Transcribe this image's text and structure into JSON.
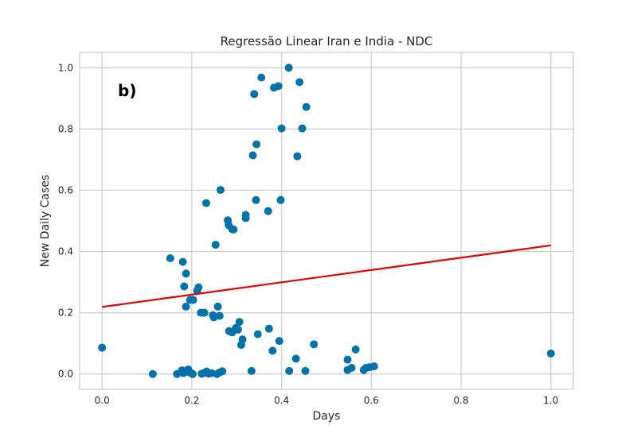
{
  "chart_data": {
    "type": "scatter",
    "title": "Regressão Linear Iran e India - NDC",
    "xlabel": "Days",
    "ylabel": "New Daily Cases",
    "panel_label": "b)",
    "xlim": [
      -0.05,
      1.05
    ],
    "ylim": [
      -0.05,
      1.05
    ],
    "xticks": [
      0.0,
      0.2,
      0.4,
      0.6,
      0.8,
      1.0
    ],
    "yticks": [
      0.0,
      0.2,
      0.4,
      0.6,
      0.8,
      1.0
    ],
    "xtick_labels": [
      "0.0",
      "0.2",
      "0.4",
      "0.6",
      "0.8",
      "1.0"
    ],
    "ytick_labels": [
      "0.0",
      "0.2",
      "0.4",
      "0.6",
      "0.8",
      "1.0"
    ],
    "grid": true,
    "point_color": "#0072A8",
    "line_color": "#E00000",
    "grid_color": "#CCCCCC",
    "series": [
      {
        "kind": "scatter",
        "points": [
          [
            0.0,
            0.086
          ],
          [
            0.113,
            0.0
          ],
          [
            0.167,
            0.0
          ],
          [
            0.178,
            0.012
          ],
          [
            0.181,
            0.003
          ],
          [
            0.187,
            0.007
          ],
          [
            0.192,
            0.015
          ],
          [
            0.197,
            0.004
          ],
          [
            0.202,
            0.0
          ],
          [
            0.222,
            0.001
          ],
          [
            0.228,
            0.004
          ],
          [
            0.233,
            0.008
          ],
          [
            0.238,
            0.001
          ],
          [
            0.244,
            0.003
          ],
          [
            0.256,
            0.0
          ],
          [
            0.262,
            0.005
          ],
          [
            0.268,
            0.009
          ],
          [
            0.333,
            0.01
          ],
          [
            0.417,
            0.01
          ],
          [
            0.453,
            0.01
          ],
          [
            0.547,
            0.013
          ],
          [
            0.556,
            0.02
          ],
          [
            0.583,
            0.013
          ],
          [
            0.588,
            0.02
          ],
          [
            0.596,
            0.022
          ],
          [
            0.606,
            0.025
          ],
          [
            1.0,
            0.067
          ],
          [
            0.152,
            0.378
          ],
          [
            0.18,
            0.366
          ],
          [
            0.187,
            0.328
          ],
          [
            0.183,
            0.286
          ],
          [
            0.215,
            0.283
          ],
          [
            0.212,
            0.272
          ],
          [
            0.203,
            0.242
          ],
          [
            0.196,
            0.242
          ],
          [
            0.187,
            0.22
          ],
          [
            0.258,
            0.22
          ],
          [
            0.22,
            0.2
          ],
          [
            0.228,
            0.2
          ],
          [
            0.247,
            0.192
          ],
          [
            0.262,
            0.19
          ],
          [
            0.249,
            0.185
          ],
          [
            0.283,
            0.14
          ],
          [
            0.29,
            0.136
          ],
          [
            0.298,
            0.15
          ],
          [
            0.306,
            0.17
          ],
          [
            0.303,
            0.145
          ],
          [
            0.313,
            0.113
          ],
          [
            0.31,
            0.095
          ],
          [
            0.347,
            0.13
          ],
          [
            0.372,
            0.148
          ],
          [
            0.38,
            0.076
          ],
          [
            0.395,
            0.108
          ],
          [
            0.432,
            0.05
          ],
          [
            0.547,
            0.047
          ],
          [
            0.565,
            0.08
          ],
          [
            0.472,
            0.097
          ],
          [
            0.232,
            0.558
          ],
          [
            0.253,
            0.422
          ],
          [
            0.264,
            0.601
          ],
          [
            0.28,
            0.502
          ],
          [
            0.282,
            0.486
          ],
          [
            0.29,
            0.473
          ],
          [
            0.293,
            0.472
          ],
          [
            0.32,
            0.509
          ],
          [
            0.32,
            0.519
          ],
          [
            0.343,
            0.568
          ],
          [
            0.37,
            0.532
          ],
          [
            0.398,
            0.568
          ],
          [
            0.336,
            0.714
          ],
          [
            0.344,
            0.75
          ],
          [
            0.4,
            0.802
          ],
          [
            0.446,
            0.802
          ],
          [
            0.435,
            0.711
          ],
          [
            0.455,
            0.872
          ],
          [
            0.339,
            0.914
          ],
          [
            0.383,
            0.935
          ],
          [
            0.393,
            0.94
          ],
          [
            0.355,
            0.968
          ],
          [
            0.416,
            1.0
          ],
          [
            0.44,
            0.953
          ]
        ]
      },
      {
        "kind": "line",
        "points": [
          [
            0.0,
            0.219
          ],
          [
            1.0,
            0.42
          ]
        ]
      }
    ]
  }
}
